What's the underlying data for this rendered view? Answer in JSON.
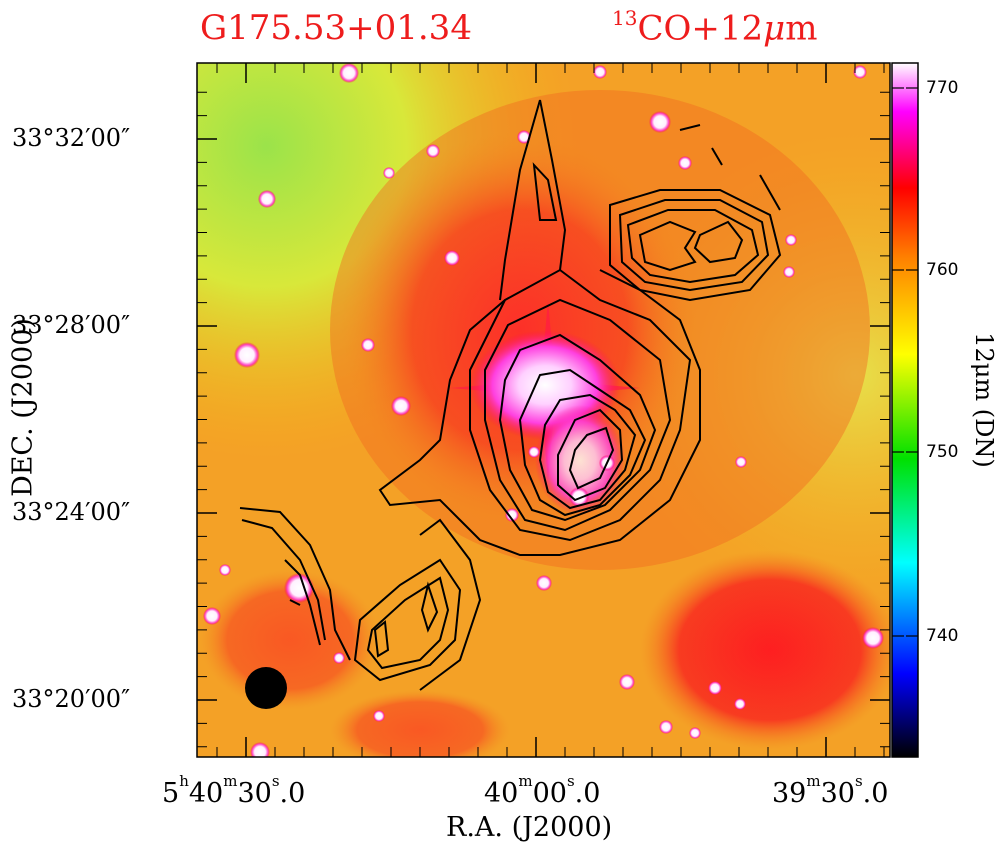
{
  "chart_data": {
    "type": "heatmap",
    "title_source": "G175.53+01.34",
    "title_data_sup": "13",
    "title_data_main": "CO+12",
    "title_data_greek": "μ",
    "title_data_tail": "m",
    "xlabel": "R.A. (J2000)",
    "ylabel": "DEC. (J2000)",
    "x_ticks": [
      {
        "h": "5",
        "m": "40",
        "s": "30",
        "frac": ".0"
      },
      {
        "m": "40",
        "s": "00",
        "frac": ".0"
      },
      {
        "m": "39",
        "s": "30",
        "frac": ".0"
      }
    ],
    "y_ticks": [
      "33°32′00″",
      "33°28′00″",
      "33°24′00″",
      "33°20′00″"
    ],
    "colorbar": {
      "label": "12μm (DN)",
      "ticks": [
        "770",
        "760",
        "750",
        "740"
      ],
      "range": [
        733,
        772
      ],
      "colors": [
        "#000000",
        "#0000ff",
        "#00ffff",
        "#00ff00",
        "#ffff00",
        "#ff8000",
        "#ff0000",
        "#ff00ff",
        "#ffffff"
      ]
    },
    "contours": "13CO integrated intensity (black lines)",
    "beam": "filled black circle, lower-left",
    "sources": [
      {
        "ra": "05:40:00",
        "dec": "+33:26:30",
        "note": "bright extended 12μm source"
      }
    ]
  }
}
